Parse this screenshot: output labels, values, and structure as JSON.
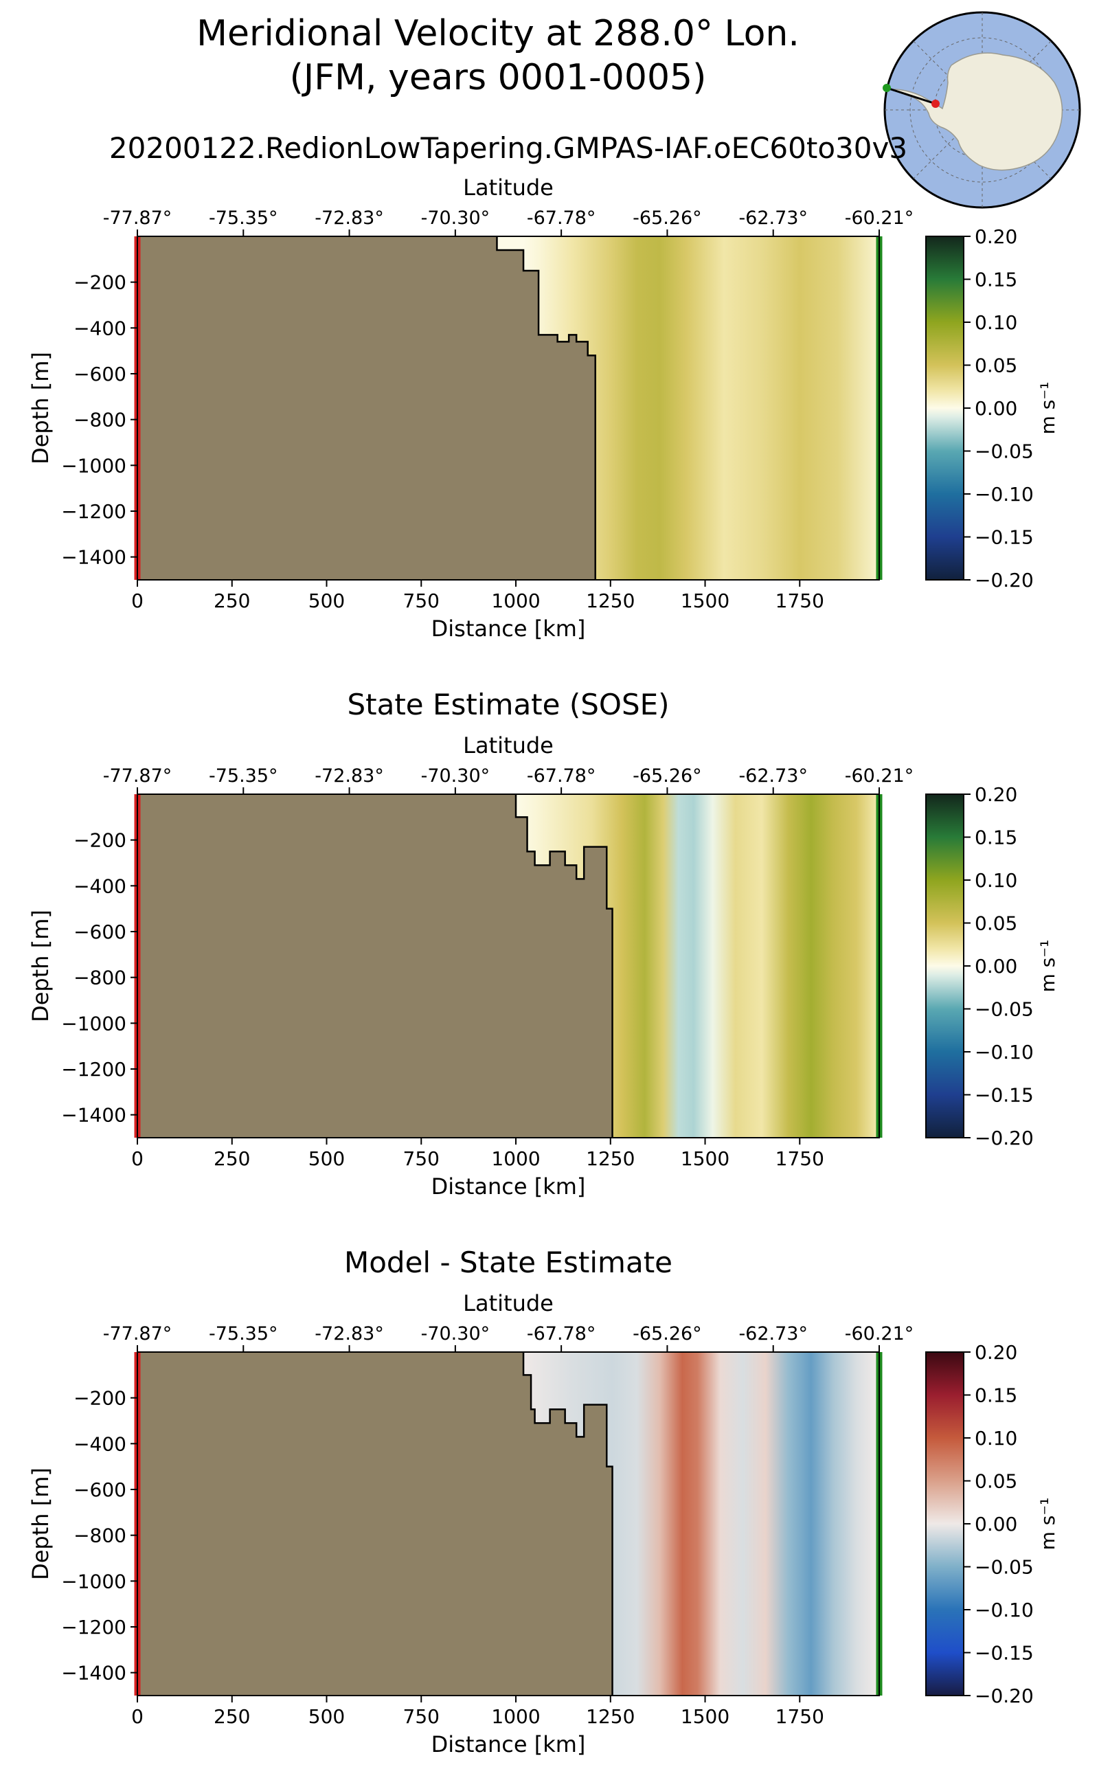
{
  "figure": {
    "title_line1": "Meridional Velocity at 288.0° Lon.",
    "title_line2": "(JFM, years 0001-0005)",
    "inset_map": "antarctica-polar-stereographic-locator-map"
  },
  "colors": {
    "land": "#8e8165",
    "start_marker": "#d62020",
    "end_marker": "#1f8a1f"
  },
  "chart_data": [
    {
      "type": "heatmap",
      "title": "20200122.RedionLowTapering.GMPAS-IAF.oEC60to30v3",
      "xlabel": "Distance [km]",
      "ylabel": "Depth [m]",
      "top_xlabel": "Latitude",
      "xlim": [
        0,
        1960
      ],
      "ylim": [
        -1500,
        0
      ],
      "x_ticks": [
        "0",
        "250",
        "500",
        "750",
        "1000",
        "1250",
        "1500",
        "1750"
      ],
      "y_ticks": [
        "−200",
        "−400",
        "−600",
        "−800",
        "−1000",
        "−1200",
        "−1400"
      ],
      "lat_ticks": [
        "-77.87°",
        "-75.35°",
        "-72.83°",
        "-70.30°",
        "-67.78°",
        "-65.26°",
        "-62.73°",
        "-60.21°"
      ],
      "colorbar": {
        "label": "m s⁻¹",
        "ticks": [
          "0.20",
          "0.15",
          "0.10",
          "0.05",
          "0.00",
          "−0.05",
          "−0.10",
          "−0.15",
          "−0.20"
        ],
        "range": [
          -0.2,
          0.2
        ],
        "cmap": "delta"
      },
      "bathymetry": [
        [
          0,
          0
        ],
        [
          950,
          0
        ],
        [
          950,
          -60
        ],
        [
          1020,
          -60
        ],
        [
          1020,
          -150
        ],
        [
          1060,
          -150
        ],
        [
          1060,
          -430
        ],
        [
          1110,
          -430
        ],
        [
          1110,
          -460
        ],
        [
          1140,
          -460
        ],
        [
          1140,
          -430
        ],
        [
          1160,
          -430
        ],
        [
          1160,
          -460
        ],
        [
          1190,
          -460
        ],
        [
          1190,
          -520
        ],
        [
          1210,
          -520
        ],
        [
          1210,
          -1500
        ]
      ],
      "velocity_by_distance": [
        [
          1020,
          0.0
        ],
        [
          1060,
          0.005
        ],
        [
          1150,
          0.02
        ],
        [
          1250,
          0.04
        ],
        [
          1320,
          0.06
        ],
        [
          1380,
          0.065
        ],
        [
          1450,
          0.045
        ],
        [
          1550,
          0.02
        ],
        [
          1650,
          0.03
        ],
        [
          1750,
          0.045
        ],
        [
          1850,
          0.035
        ],
        [
          1950,
          0.01
        ]
      ]
    },
    {
      "type": "heatmap",
      "title": "State Estimate (SOSE)",
      "xlabel": "Distance [km]",
      "ylabel": "Depth [m]",
      "top_xlabel": "Latitude",
      "xlim": [
        0,
        1960
      ],
      "ylim": [
        -1500,
        0
      ],
      "x_ticks": [
        "0",
        "250",
        "500",
        "750",
        "1000",
        "1250",
        "1500",
        "1750"
      ],
      "y_ticks": [
        "−200",
        "−400",
        "−600",
        "−800",
        "−1000",
        "−1200",
        "−1400"
      ],
      "lat_ticks": [
        "-77.87°",
        "-75.35°",
        "-72.83°",
        "-70.30°",
        "-67.78°",
        "-65.26°",
        "-62.73°",
        "-60.21°"
      ],
      "colorbar": {
        "label": "m s⁻¹",
        "ticks": [
          "0.20",
          "0.15",
          "0.10",
          "0.05",
          "0.00",
          "−0.05",
          "−0.10",
          "−0.15",
          "−0.20"
        ],
        "range": [
          -0.2,
          0.2
        ],
        "cmap": "delta"
      },
      "bathymetry": [
        [
          0,
          0
        ],
        [
          1000,
          0
        ],
        [
          1000,
          -100
        ],
        [
          1030,
          -100
        ],
        [
          1030,
          -250
        ],
        [
          1050,
          -250
        ],
        [
          1050,
          -310
        ],
        [
          1090,
          -310
        ],
        [
          1090,
          -250
        ],
        [
          1130,
          -250
        ],
        [
          1130,
          -310
        ],
        [
          1160,
          -310
        ],
        [
          1160,
          -370
        ],
        [
          1180,
          -370
        ],
        [
          1180,
          -230
        ],
        [
          1240,
          -230
        ],
        [
          1240,
          -500
        ],
        [
          1255,
          -500
        ],
        [
          1255,
          -1500
        ]
      ],
      "velocity_by_distance": [
        [
          1000,
          0.0
        ],
        [
          1050,
          0.005
        ],
        [
          1200,
          0.025
        ],
        [
          1280,
          0.05
        ],
        [
          1340,
          0.075
        ],
        [
          1390,
          0.04
        ],
        [
          1430,
          -0.02
        ],
        [
          1470,
          -0.025
        ],
        [
          1520,
          -0.005
        ],
        [
          1580,
          0.03
        ],
        [
          1650,
          0.02
        ],
        [
          1720,
          0.06
        ],
        [
          1780,
          0.085
        ],
        [
          1840,
          0.06
        ],
        [
          1900,
          0.045
        ],
        [
          1950,
          0.02
        ]
      ]
    },
    {
      "type": "heatmap",
      "title": "Model - State Estimate",
      "xlabel": "Distance [km]",
      "ylabel": "Depth [m]",
      "top_xlabel": "Latitude",
      "xlim": [
        0,
        1960
      ],
      "ylim": [
        -1500,
        0
      ],
      "x_ticks": [
        "0",
        "250",
        "500",
        "750",
        "1000",
        "1250",
        "1500",
        "1750"
      ],
      "y_ticks": [
        "−200",
        "−400",
        "−600",
        "−800",
        "−1000",
        "−1200",
        "−1400"
      ],
      "lat_ticks": [
        "-77.87°",
        "-75.35°",
        "-72.83°",
        "-70.30°",
        "-67.78°",
        "-65.26°",
        "-62.73°",
        "-60.21°"
      ],
      "colorbar": {
        "label": "m s⁻¹",
        "ticks": [
          "0.20",
          "0.15",
          "0.10",
          "0.05",
          "0.00",
          "−0.05",
          "−0.10",
          "−0.15",
          "−0.20"
        ],
        "range": [
          -0.2,
          0.2
        ],
        "cmap": "balance"
      },
      "bathymetry": [
        [
          0,
          0
        ],
        [
          1020,
          0
        ],
        [
          1020,
          -100
        ],
        [
          1040,
          -100
        ],
        [
          1040,
          -250
        ],
        [
          1050,
          -250
        ],
        [
          1050,
          -310
        ],
        [
          1090,
          -310
        ],
        [
          1090,
          -250
        ],
        [
          1130,
          -250
        ],
        [
          1130,
          -310
        ],
        [
          1160,
          -310
        ],
        [
          1160,
          -370
        ],
        [
          1180,
          -370
        ],
        [
          1180,
          -230
        ],
        [
          1240,
          -230
        ],
        [
          1240,
          -500
        ],
        [
          1255,
          -500
        ],
        [
          1255,
          -1500
        ]
      ],
      "velocity_by_distance": [
        [
          1020,
          0.0
        ],
        [
          1150,
          -0.01
        ],
        [
          1255,
          -0.015
        ],
        [
          1320,
          -0.01
        ],
        [
          1380,
          0.03
        ],
        [
          1440,
          0.09
        ],
        [
          1480,
          0.075
        ],
        [
          1540,
          0.01
        ],
        [
          1600,
          -0.01
        ],
        [
          1660,
          0.015
        ],
        [
          1720,
          -0.04
        ],
        [
          1780,
          -0.065
        ],
        [
          1840,
          -0.03
        ],
        [
          1900,
          -0.01
        ],
        [
          1950,
          0.0
        ]
      ]
    }
  ]
}
